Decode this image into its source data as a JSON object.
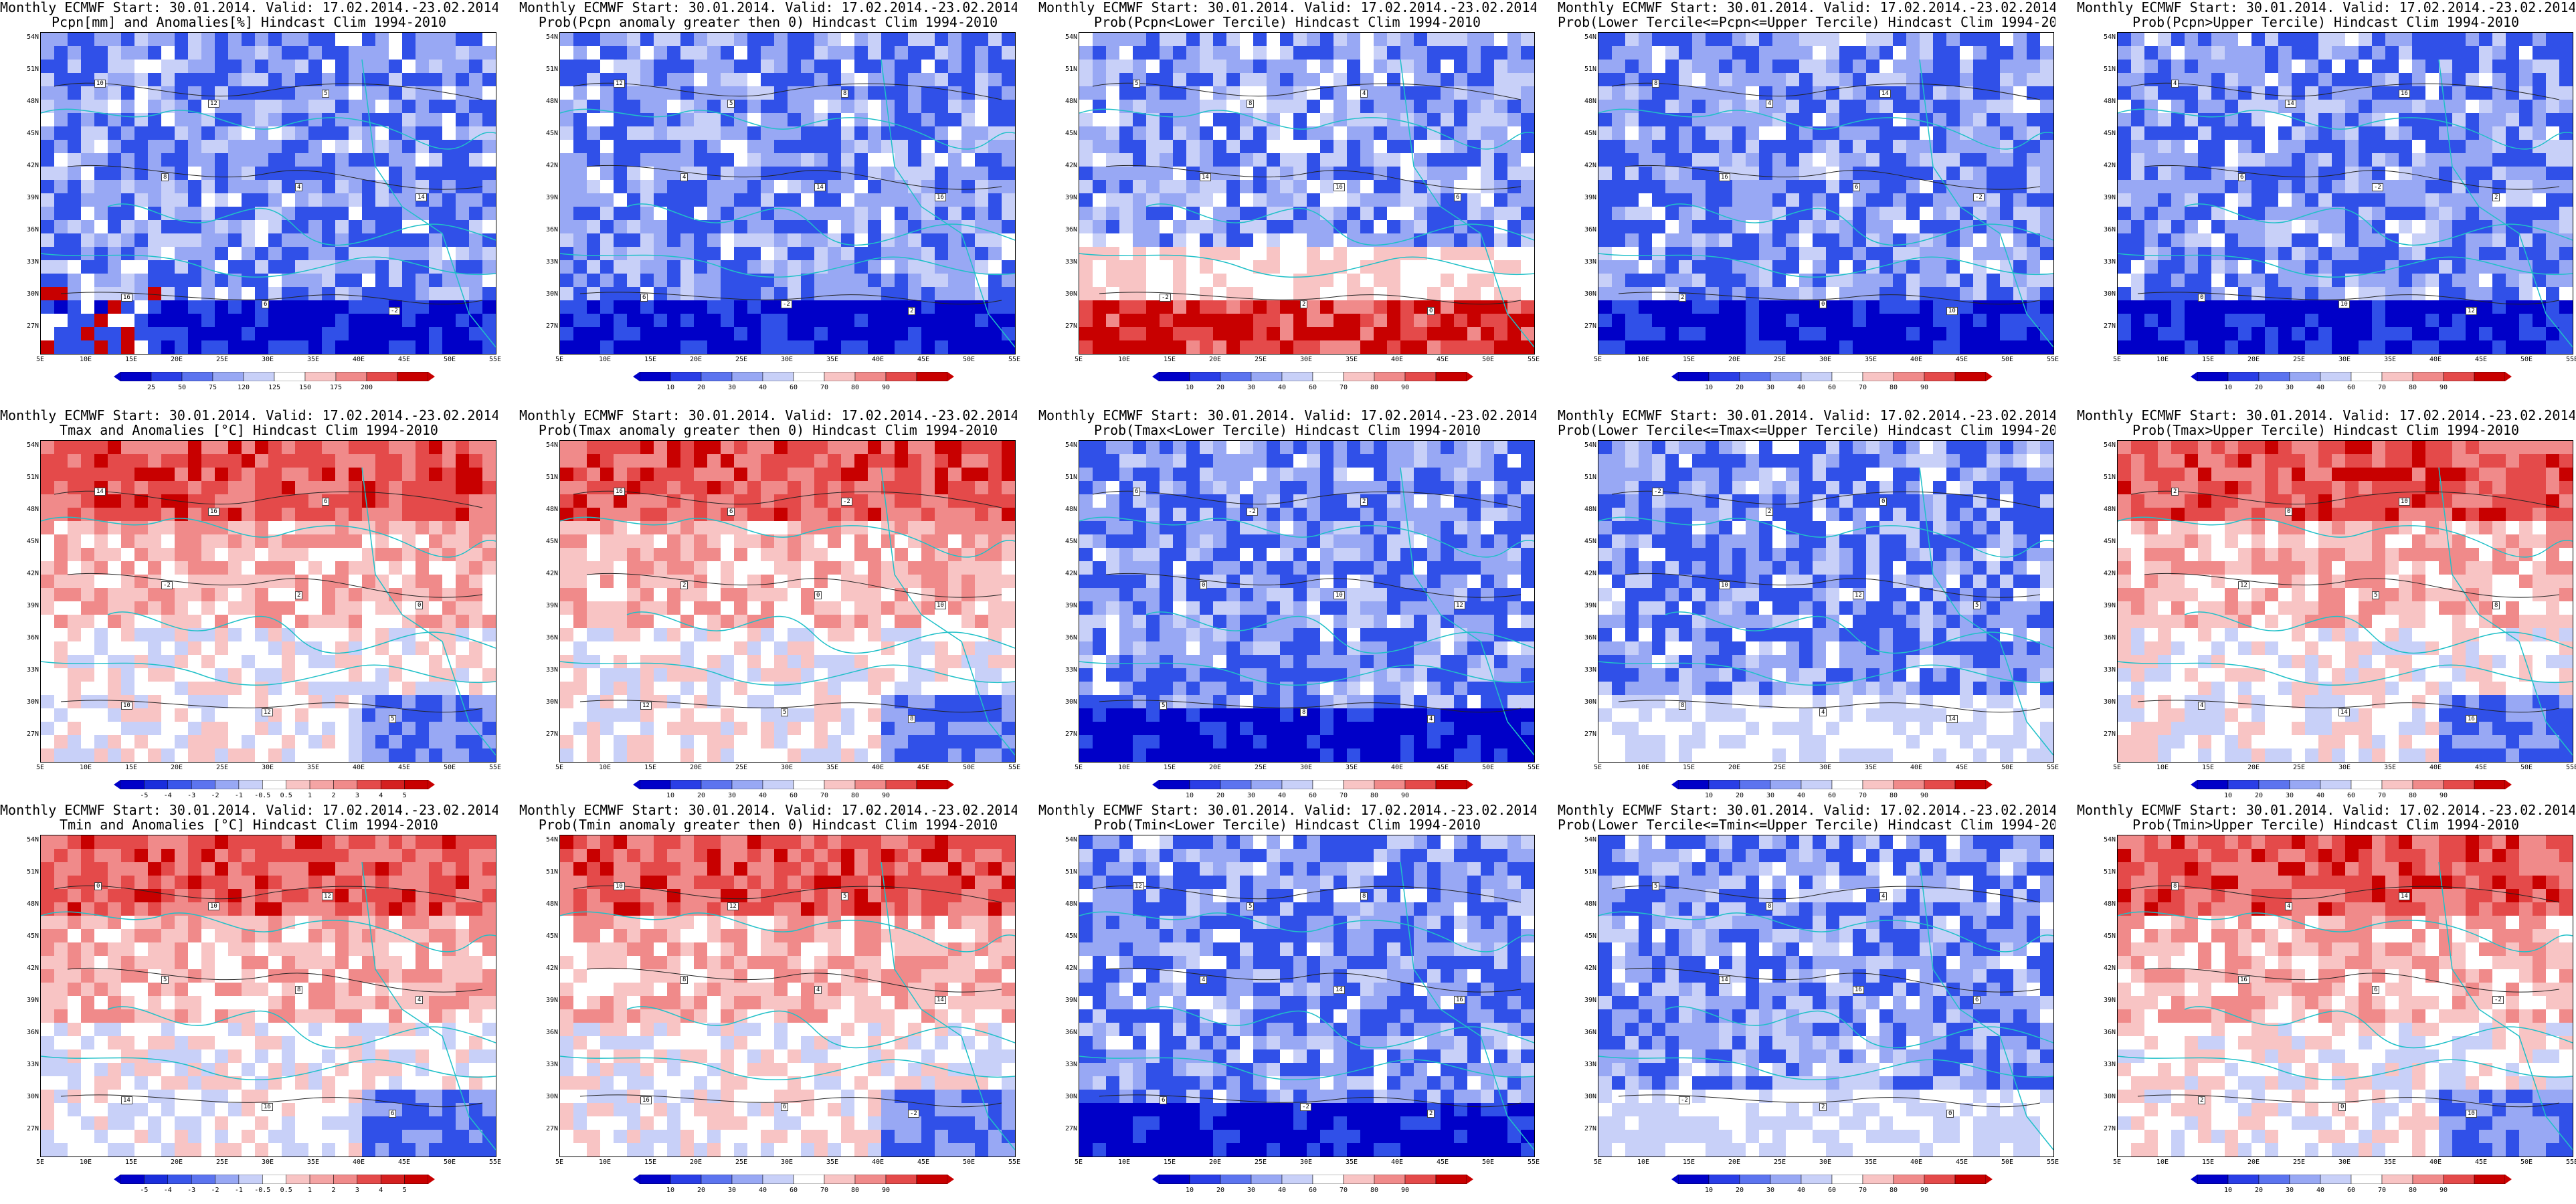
{
  "common_line1": "Monthly ECMWF Start: 30.01.2014. Valid: 17.02.2014.-23.02.2014.",
  "panels": [
    {
      "line1": "Monthly ECMWF Start: 30.01.2014. Valid: 17.02.2014.-23.02.2014.",
      "line2": "Pcpn[mm] and Anomalies[%] Hindcast Clim 1994-2010",
      "scheme": "pcp_anom",
      "cbar": "pcp_anom"
    },
    {
      "line1": "Monthly ECMWF Start: 30.01.2014. Valid: 17.02.2014.-23.02.2014.",
      "line2": "Prob(Pcpn anomaly greater then 0) Hindcast Clim 1994-2010",
      "scheme": "prob_blue",
      "cbar": "prob"
    },
    {
      "line1": "Monthly ECMWF Start: 30.01.2014. Valid: 17.02.2014.-23.02.2014.",
      "line2": "Prob(Pcpn<Lower Tercile) Hindcast Clim 1994-2010",
      "scheme": "prob_red_south",
      "cbar": "prob"
    },
    {
      "line1": "Monthly ECMWF Start: 30.01.2014. Valid: 17.02.2014.-23.02.2014.",
      "line2": "Prob(Lower Tercile<=Pcpn<=Upper Tercile) Hindcast Clim 1994-2010",
      "scheme": "prob_blue",
      "cbar": "prob"
    },
    {
      "line1": "Monthly ECMWF Start: 30.01.2014. Valid: 17.02.2014.-23.02.2014.",
      "line2": "Prob(Pcpn>Upper Tercile) Hindcast Clim 1994-2010",
      "scheme": "prob_blue",
      "cbar": "prob"
    },
    {
      "line1": "Monthly ECMWF Start: 30.01.2014. Valid: 17.02.2014.-23.02.2014.",
      "line2": "Tmax and Anomalies [°C] Hindcast Clim 1994-2010",
      "scheme": "temp_red_north",
      "cbar": "tanom"
    },
    {
      "line1": "Monthly ECMWF Start: 30.01.2014. Valid: 17.02.2014.-23.02.2014.",
      "line2": "Prob(Tmax anomaly greater then 0) Hindcast Clim 1994-2010",
      "scheme": "temp_red_north",
      "cbar": "prob"
    },
    {
      "line1": "Monthly ECMWF Start: 30.01.2014. Valid: 17.02.2014.-23.02.2014.",
      "line2": "Prob(Tmax<Lower Tercile) Hindcast Clim 1994-2010",
      "scheme": "prob_blue",
      "cbar": "prob"
    },
    {
      "line1": "Monthly ECMWF Start: 30.01.2014. Valid: 17.02.2014.-23.02.2014.",
      "line2": "Prob(Lower Tercile<=Tmax<=Upper Tercile) Hindcast Clim 1994-2010",
      "scheme": "prob_mixed",
      "cbar": "prob"
    },
    {
      "line1": "Monthly ECMWF Start: 30.01.2014. Valid: 17.02.2014.-23.02.2014.",
      "line2": "Prob(Tmax>Upper Tercile) Hindcast Clim 1994-2010",
      "scheme": "temp_red_north",
      "cbar": "prob"
    },
    {
      "line1": "Monthly ECMWF Start: 30.01.2014. Valid: 17.02.2014.-23.02.2014.",
      "line2": "Tmin and Anomalies [°C] Hindcast Clim 1994-2010",
      "scheme": "temp_red_north",
      "cbar": "tanom"
    },
    {
      "line1": "Monthly ECMWF Start: 30.01.2014. Valid: 17.02.2014.-23.02.2014.",
      "line2": "Prob(Tmin anomaly greater then 0) Hindcast Clim 1994-2010",
      "scheme": "temp_red_north",
      "cbar": "prob"
    },
    {
      "line1": "Monthly ECMWF Start: 30.01.2014. Valid: 17.02.2014.-23.02.2014.",
      "line2": "Prob(Tmin<Lower Tercile) Hindcast Clim 1994-2010",
      "scheme": "prob_blue",
      "cbar": "prob"
    },
    {
      "line1": "Monthly ECMWF Start: 30.01.2014. Valid: 17.02.2014.-23.02.2014.",
      "line2": "Prob(Lower Tercile<=Tmin<=Upper Tercile) Hindcast Clim 1994-2010",
      "scheme": "prob_mixed",
      "cbar": "prob"
    },
    {
      "line1": "Monthly ECMWF Start: 30.01.2014. Valid: 17.02.2014.-23.02.2014.",
      "line2": "Prob(Tmin>Upper Tercile) Hindcast Clim 1994-2010",
      "scheme": "temp_red_north",
      "cbar": "prob"
    }
  ],
  "lat_labels": [
    "54N",
    "51N",
    "48N",
    "45N",
    "42N",
    "39N",
    "36N",
    "33N",
    "30N",
    "27N"
  ],
  "lon_labels": [
    "5E",
    "10E",
    "15E",
    "20E",
    "25E",
    "30E",
    "35E",
    "40E",
    "45E",
    "50E",
    "55E"
  ],
  "colorbars": {
    "pcp_anom": {
      "labels": [
        "25",
        "50",
        "75",
        "120",
        "125",
        "150",
        "175",
        "200"
      ],
      "colors": [
        "#0000c8",
        "#2a3ee6",
        "#5c74ef",
        "#98a8f4",
        "#c8d0f8",
        "#ffffff",
        "#f8c4c4",
        "#f08a8a",
        "#e44a4a",
        "#c80000"
      ]
    },
    "prob": {
      "labels": [
        "10",
        "20",
        "30",
        "40",
        "60",
        "70",
        "80",
        "90"
      ],
      "colors": [
        "#0000c8",
        "#2a3ee6",
        "#5c74ef",
        "#98a8f4",
        "#c8d0f8",
        "#ffffff",
        "#f8c4c4",
        "#f08a8a",
        "#e44a4a",
        "#c80000"
      ]
    },
    "tanom": {
      "labels": [
        "-5",
        "-4",
        "-3",
        "-2",
        "-1",
        "-0.5",
        "0.5",
        "1",
        "2",
        "3",
        "4",
        "5"
      ],
      "colors": [
        "#0000c8",
        "#1a2edc",
        "#3a56ea",
        "#5c74ef",
        "#98a8f4",
        "#c8d0f8",
        "#ffffff",
        "#f8c4c4",
        "#f4a4a4",
        "#f08a8a",
        "#e44a4a",
        "#d42020",
        "#c80000"
      ]
    }
  },
  "contour_labels": [
    "10",
    "12",
    "5",
    "8",
    "4",
    "14",
    "16",
    "6",
    "-2",
    "2",
    "0"
  ],
  "map_colors": {
    "deep_blue": "#0000c8",
    "blue": "#3050e8",
    "light_blue": "#98a8f4",
    "pale_blue": "#c8d0f8",
    "white": "#ffffff",
    "pale_red": "#f8c4c4",
    "red": "#f08a8a",
    "strong_red": "#e44a4a",
    "deep_red": "#c80000",
    "coast": "#20c0c8"
  }
}
